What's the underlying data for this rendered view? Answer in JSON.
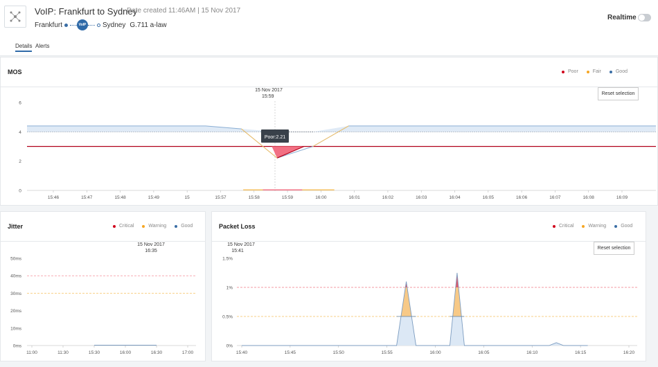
{
  "header": {
    "title": "VoIP: Frankfurt to Sydney",
    "date_created": "Date created 11:46AM | 15 Nov 2017",
    "source": "Frankfurt",
    "badge": "VoIP",
    "destination": "Sydney",
    "codec": "G.711 a-law",
    "realtime_label": "Realtime",
    "realtime_on": false
  },
  "tabs": [
    {
      "label": "Details",
      "active": true
    },
    {
      "label": "Alerts",
      "active": false
    }
  ],
  "mos": {
    "title": "MOS",
    "legend": [
      {
        "label": "Poor",
        "color": "#d0021b"
      },
      {
        "label": "Fair",
        "color": "#f5a623"
      },
      {
        "label": "Good",
        "color": "#3a6ea5"
      }
    ],
    "reset_label": "Reset selection",
    "hover_date": "15 Nov 2017",
    "hover_time": "15:59",
    "tooltip": "Poor:2.21"
  },
  "jitter": {
    "title": "Jitter",
    "legend": [
      {
        "label": "Critical",
        "color": "#d0021b"
      },
      {
        "label": "Warning",
        "color": "#f5a623"
      },
      {
        "label": "Good",
        "color": "#3a6ea5"
      }
    ],
    "hover_date": "15 Nov 2017",
    "hover_time": "16:35"
  },
  "packet_loss": {
    "title": "Packet Loss",
    "legend": [
      {
        "label": "Critical",
        "color": "#d0021b"
      },
      {
        "label": "Warning",
        "color": "#f5a623"
      },
      {
        "label": "Good",
        "color": "#3a6ea5"
      }
    ],
    "reset_label": "Reset selection",
    "hover_date": "15 Nov 2017",
    "hover_time": "15:41"
  },
  "chart_data": [
    {
      "type": "area",
      "name": "mos",
      "ylim": [
        0,
        6
      ],
      "yticks": [
        0,
        2,
        4,
        6
      ],
      "xticks": [
        "15:46",
        "15:47",
        "15:48",
        "15:49",
        "15",
        "15:57",
        "15:58",
        "15:59",
        "16:00",
        "16:01",
        "16:02",
        "16:03",
        "16:04",
        "16:05",
        "16:06",
        "16:07",
        "16:08",
        "16:09"
      ],
      "thresholds": {
        "critical": 3.0,
        "warning": 4.0
      },
      "x": [
        0,
        5,
        6,
        7,
        8,
        9,
        17.6
      ],
      "values": [
        4.4,
        4.4,
        4.2,
        2.21,
        3.0,
        4.4,
        4.4
      ]
    },
    {
      "type": "area",
      "name": "jitter",
      "ylim": [
        0,
        50
      ],
      "yticks": [
        "0ms",
        "10ms",
        "20ms",
        "30ms",
        "40ms",
        "50ms"
      ],
      "xticks": [
        "11:00",
        "11:30",
        "15:30",
        "16:00",
        "16:30",
        "17:00"
      ],
      "thresholds": {
        "critical": 40,
        "warning": 30
      },
      "x": [
        2,
        4
      ],
      "values": [
        0.2,
        0.2
      ]
    },
    {
      "type": "area",
      "name": "packet_loss",
      "ylim": [
        0,
        1.5
      ],
      "yticks": [
        "0%",
        "0.5%",
        "1%",
        "1.5%"
      ],
      "xticks": [
        "15:40",
        "15:45",
        "15:50",
        "15:55",
        "16:00",
        "16:05",
        "16:10",
        "16:15",
        "16:20"
      ],
      "thresholds": {
        "critical": 1.0,
        "warning": 0.5
      },
      "x": [
        0,
        6.4,
        6.8,
        7.2,
        8.6,
        8.9,
        9.2,
        12.7,
        13,
        13.3,
        14.3
      ],
      "values": [
        0,
        0,
        1.1,
        0,
        0,
        1.25,
        0,
        0,
        0.05,
        0,
        0
      ]
    }
  ]
}
